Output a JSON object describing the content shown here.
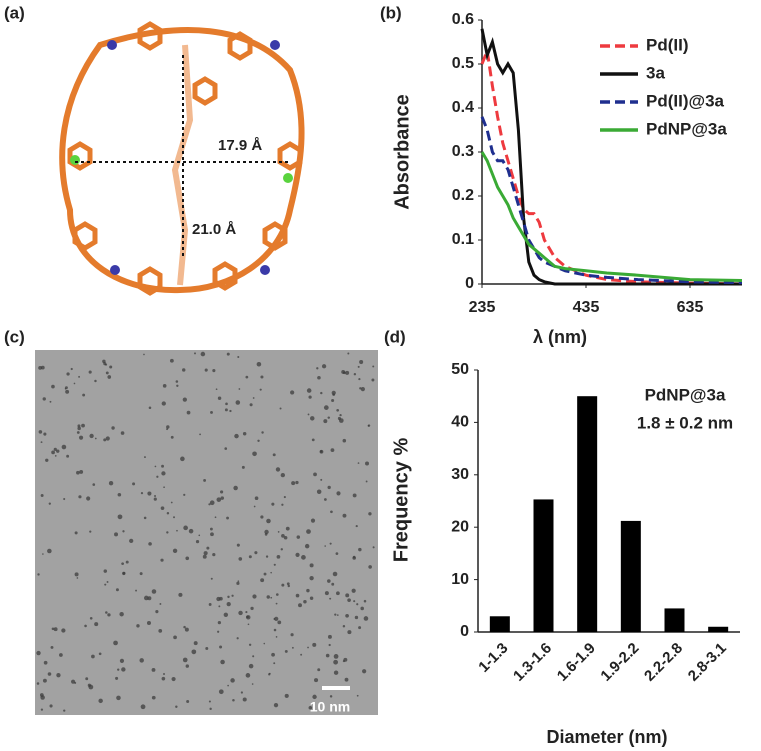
{
  "panels": [
    {
      "label": "(a)",
      "annotations": [
        "17.9 Å",
        "21.0 Å"
      ]
    },
    {
      "label": "(c)",
      "scale_bar": "10 nm"
    }
  ],
  "chart_data": [
    {
      "type": "line",
      "panel": "(b)",
      "xlabel": "λ (nm)",
      "ylabel": "Absorbance",
      "xlim": [
        235,
        735
      ],
      "xticks": [
        235,
        435,
        635
      ],
      "ylim": [
        0,
        0.6
      ],
      "yticks": [
        0,
        0.1,
        0.2,
        0.3,
        0.4,
        0.5,
        0.6
      ],
      "x": [
        235,
        245,
        255,
        265,
        275,
        285,
        295,
        305,
        315,
        325,
        335,
        345,
        355,
        375,
        395,
        435,
        475,
        535,
        635,
        735
      ],
      "series": [
        {
          "name": "Pd(II)",
          "color": "#ee3a3f",
          "dash": "dashed",
          "values": [
            0.5,
            0.53,
            0.45,
            0.38,
            0.32,
            0.28,
            0.24,
            0.2,
            0.17,
            0.16,
            0.16,
            0.14,
            0.1,
            0.06,
            0.04,
            0.02,
            0.01,
            0.005,
            0.002,
            0
          ]
        },
        {
          "name": "3a",
          "color": "#111111",
          "dash": "solid",
          "values": [
            0.58,
            0.52,
            0.55,
            0.5,
            0.48,
            0.5,
            0.48,
            0.35,
            0.15,
            0.05,
            0.02,
            0.01,
            0.005,
            0,
            0,
            0,
            0,
            0,
            0,
            0
          ]
        },
        {
          "name": "Pd(II)@3a",
          "color": "#1f2f8f",
          "dash": "dashed",
          "values": [
            0.38,
            0.35,
            0.3,
            0.28,
            0.28,
            0.26,
            0.22,
            0.18,
            0.14,
            0.1,
            0.08,
            0.06,
            0.05,
            0.04,
            0.03,
            0.02,
            0.015,
            0.01,
            0.005,
            0.003
          ]
        },
        {
          "name": "PdNP@3a",
          "color": "#3aaa35",
          "dash": "solid",
          "values": [
            0.3,
            0.28,
            0.25,
            0.22,
            0.2,
            0.18,
            0.15,
            0.13,
            0.11,
            0.09,
            0.08,
            0.07,
            0.06,
            0.04,
            0.035,
            0.03,
            0.025,
            0.02,
            0.01,
            0.008
          ]
        }
      ]
    },
    {
      "type": "bar",
      "panel": "(d)",
      "title": "PdNP@3a",
      "subtitle": "1.8 ± 0.2 nm",
      "xlabel": "Diameter (nm)",
      "ylabel": "Frequency %",
      "color": "#000000",
      "categories": [
        "1-1.3",
        "1.3-1.6",
        "1.6-1.9",
        "1.9-2.2",
        "2.2-2.8",
        "2.8-3.1"
      ],
      "values": [
        3,
        25.3,
        45,
        21.2,
        4.5,
        1
      ],
      "ylim": [
        0,
        50
      ],
      "yticks": [
        0,
        10,
        20,
        30,
        40,
        50
      ]
    }
  ]
}
